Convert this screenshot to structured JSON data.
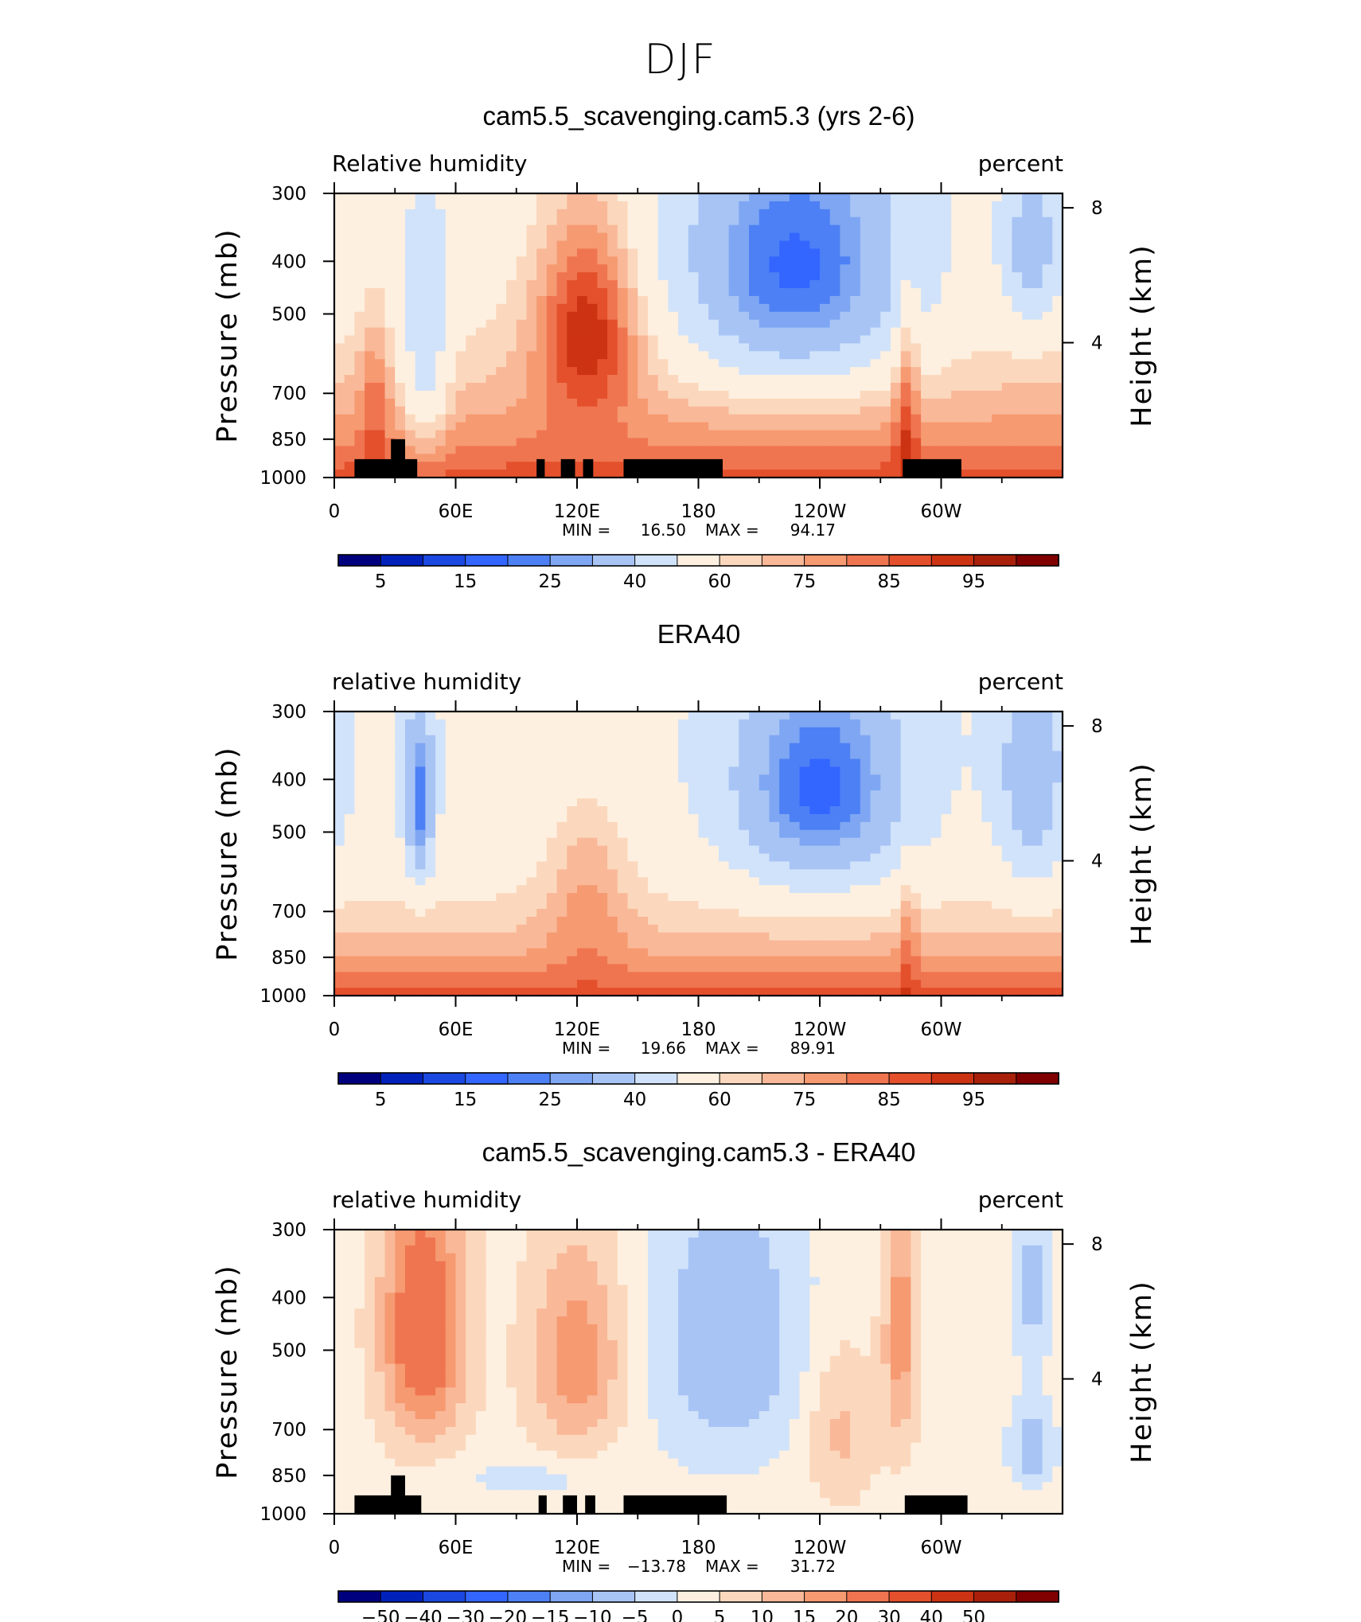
{
  "figure_title": "DJF",
  "colors": {
    "rh_palette": [
      "#00007f",
      "#0022bb",
      "#1a48e0",
      "#3366ff",
      "#4d80f5",
      "#7ea6f2",
      "#a8c4f5",
      "#d1e3fa",
      "#fdf0e0",
      "#fbd8bd",
      "#f9b898",
      "#f69a72",
      "#ef7550",
      "#e4502c",
      "#cc3312",
      "#a8200a",
      "#800000"
    ],
    "diff_palette": [
      "#00007f",
      "#0022bb",
      "#1a48e0",
      "#3366ff",
      "#4d80f5",
      "#7ea6f2",
      "#a8c4f5",
      "#d1e3fa",
      "#fdf0e0",
      "#fbd8bd",
      "#f9b898",
      "#f69a72",
      "#ef7550",
      "#e4502c",
      "#cc3312",
      "#a8200a",
      "#800000"
    ],
    "topography": "#000000"
  },
  "panels": [
    {
      "title": "cam5.5_scavenging.cam5.3 (yrs 2-6)",
      "left_label": "Relative humidity",
      "right_label": "percent",
      "stats": {
        "min_label": "MIN =",
        "min_value": "16.50",
        "max_label": "MAX =",
        "max_value": "94.17"
      }
    },
    {
      "title": "ERA40",
      "left_label": "relative humidity",
      "right_label": "percent",
      "stats": {
        "min_label": "MIN =",
        "min_value": "19.66",
        "max_label": "MAX =",
        "max_value": "89.91"
      }
    },
    {
      "title": "cam5.5_scavenging.cam5.3 - ERA40",
      "left_label": "relative humidity",
      "right_label": "percent",
      "stats": {
        "min_label": "MIN =",
        "min_value": "−13.78",
        "max_label": "MAX =",
        "max_value": "31.72"
      }
    }
  ],
  "chart_data": [
    {
      "type": "heatmap",
      "title": "cam5.5_scavenging.cam5.3 (yrs 2-6)",
      "ylabel": "Pressure (mb)",
      "y2label": "Height (km)",
      "xticks": [
        "0",
        "60E",
        "120E",
        "180",
        "120W",
        "60W"
      ],
      "yticks": [
        "300",
        "400",
        "500",
        "700",
        "850",
        "1000"
      ],
      "y2ticks": [
        "8",
        "4"
      ],
      "xlim": [
        0,
        360
      ],
      "ylim": [
        1000,
        300
      ],
      "y_scale": "log",
      "units": "percent",
      "min": 16.5,
      "max": 94.17,
      "colorbar_labels": [
        "5",
        "15",
        "25",
        "40",
        "60",
        "75",
        "85",
        "95"
      ],
      "features": [
        {
          "lon": 125,
          "p": 550,
          "value": 85
        },
        {
          "lon": 228,
          "p": 400,
          "value": 22
        },
        {
          "lon": 345,
          "p": 380,
          "value": 28
        },
        {
          "lon": 20,
          "p": 950,
          "value": 85
        },
        {
          "lon": 200,
          "p": 930,
          "value": 90
        },
        {
          "lon": 280,
          "p": 900,
          "value": 90
        },
        {
          "lon": 10,
          "p": 350,
          "value": 55
        }
      ],
      "topography": [
        {
          "lon0": 10,
          "lon1": 41,
          "p_top": 925
        },
        {
          "lon0": 28,
          "lon1": 35,
          "p_top": 850
        },
        {
          "lon0": 100,
          "lon1": 104,
          "p_top": 925
        },
        {
          "lon0": 112,
          "lon1": 119,
          "p_top": 925
        },
        {
          "lon0": 123,
          "lon1": 128,
          "p_top": 925
        },
        {
          "lon0": 143,
          "lon1": 192,
          "p_top": 925
        },
        {
          "lon0": 281,
          "lon1": 310,
          "p_top": 925
        }
      ]
    },
    {
      "type": "heatmap",
      "title": "ERA40",
      "ylabel": "Pressure (mb)",
      "y2label": "Height (km)",
      "xticks": [
        "0",
        "60E",
        "120E",
        "180",
        "120W",
        "60W"
      ],
      "yticks": [
        "300",
        "400",
        "500",
        "700",
        "850",
        "1000"
      ],
      "y2ticks": [
        "8",
        "4"
      ],
      "xlim": [
        0,
        360
      ],
      "ylim": [
        1000,
        300
      ],
      "y_scale": "log",
      "units": "percent",
      "min": 19.66,
      "max": 89.91,
      "colorbar_labels": [
        "5",
        "15",
        "25",
        "40",
        "60",
        "75",
        "85",
        "95"
      ],
      "features": [
        {
          "lon": 42,
          "p": 420,
          "value": 25
        },
        {
          "lon": 240,
          "p": 420,
          "value": 22
        },
        {
          "lon": 345,
          "p": 420,
          "value": 40
        },
        {
          "lon": 120,
          "p": 600,
          "value": 75
        },
        {
          "lon": 100,
          "p": 930,
          "value": 85
        },
        {
          "lon": 320,
          "p": 930,
          "value": 88
        },
        {
          "lon": 18,
          "p": 900,
          "value": 80
        }
      ],
      "topography": []
    },
    {
      "type": "heatmap",
      "title": "cam5.5_scavenging.cam5.3 - ERA40",
      "ylabel": "Pressure (mb)",
      "y2label": "Height (km)",
      "xticks": [
        "0",
        "60E",
        "120E",
        "180",
        "120W",
        "60W"
      ],
      "yticks": [
        "300",
        "400",
        "500",
        "700",
        "850",
        "1000"
      ],
      "y2ticks": [
        "8",
        "4"
      ],
      "xlim": [
        0,
        360
      ],
      "ylim": [
        1000,
        300
      ],
      "y_scale": "log",
      "units": "percent",
      "min": -13.78,
      "max": 31.72,
      "colorbar_labels": [
        "−50",
        "−40",
        "−30",
        "−20",
        "−15",
        "−10",
        "−5",
        "0",
        "5",
        "10",
        "15",
        "20",
        "30",
        "40",
        "50"
      ],
      "features": [
        {
          "lon": 45,
          "p": 480,
          "value": 28
        },
        {
          "lon": 118,
          "p": 520,
          "value": 20
        },
        {
          "lon": 195,
          "p": 470,
          "value": -12
        },
        {
          "lon": 345,
          "p": 380,
          "value": -10
        },
        {
          "lon": 345,
          "p": 750,
          "value": -12
        },
        {
          "lon": 280,
          "p": 450,
          "value": 18
        },
        {
          "lon": 250,
          "p": 700,
          "value": 10
        },
        {
          "lon": 100,
          "p": 850,
          "value": -4
        }
      ],
      "topography": [
        {
          "lon0": 10,
          "lon1": 43,
          "p_top": 925
        },
        {
          "lon0": 28,
          "lon1": 35,
          "p_top": 850
        },
        {
          "lon0": 101,
          "lon1": 105,
          "p_top": 925
        },
        {
          "lon0": 113,
          "lon1": 120,
          "p_top": 925
        },
        {
          "lon0": 124,
          "lon1": 129,
          "p_top": 925
        },
        {
          "lon0": 143,
          "lon1": 194,
          "p_top": 925
        },
        {
          "lon0": 282,
          "lon1": 313,
          "p_top": 925
        }
      ]
    }
  ]
}
